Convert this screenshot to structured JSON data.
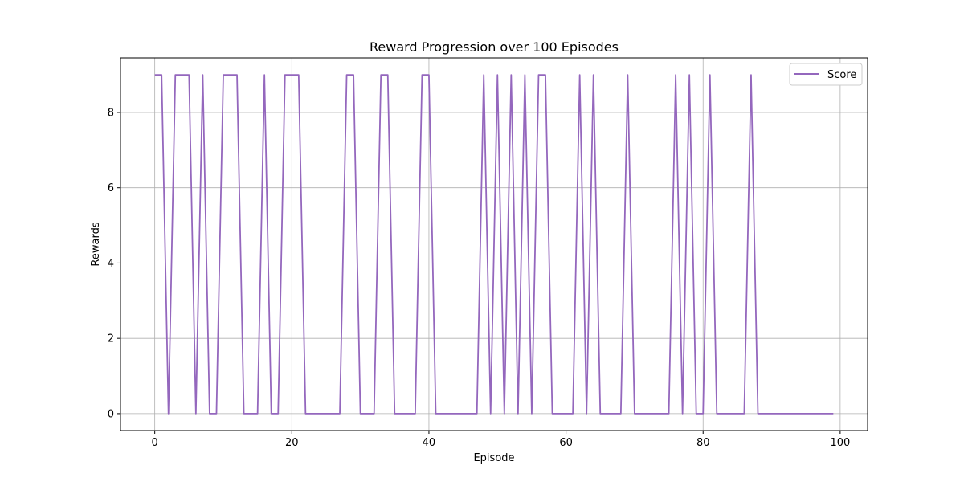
{
  "chart_data": {
    "type": "line",
    "title": "Reward Progression over 100 Episodes",
    "xlabel": "Episode",
    "ylabel": "Rewards",
    "xlim": [
      -5,
      104
    ],
    "ylim": [
      -0.45,
      9.45
    ],
    "xticks": [
      0,
      20,
      40,
      60,
      80,
      100
    ],
    "yticks": [
      0,
      2,
      4,
      6,
      8
    ],
    "grid": true,
    "legend": "top-right",
    "series": [
      {
        "name": "Score",
        "color": "#9467bd",
        "x": [
          0,
          1,
          2,
          3,
          4,
          5,
          6,
          7,
          8,
          9,
          10,
          11,
          12,
          13,
          14,
          15,
          16,
          17,
          18,
          19,
          20,
          21,
          22,
          23,
          24,
          25,
          26,
          27,
          28,
          29,
          30,
          31,
          32,
          33,
          34,
          35,
          36,
          37,
          38,
          39,
          40,
          41,
          42,
          43,
          44,
          45,
          46,
          47,
          48,
          49,
          50,
          51,
          52,
          53,
          54,
          55,
          56,
          57,
          58,
          59,
          60,
          61,
          62,
          63,
          64,
          65,
          66,
          67,
          68,
          69,
          70,
          71,
          72,
          73,
          74,
          75,
          76,
          77,
          78,
          79,
          80,
          81,
          82,
          83,
          84,
          85,
          86,
          87,
          88,
          89,
          90,
          91,
          92,
          93,
          94,
          95,
          96,
          97,
          98,
          99
        ],
        "y": [
          9,
          9,
          0,
          9,
          9,
          9,
          0,
          9,
          0,
          0,
          9,
          9,
          9,
          0,
          0,
          0,
          9,
          0,
          0,
          9,
          9,
          9,
          0,
          0,
          0,
          0,
          0,
          0,
          9,
          9,
          0,
          0,
          0,
          9,
          9,
          0,
          0,
          0,
          0,
          9,
          9,
          0,
          0,
          0,
          0,
          0,
          0,
          0,
          9,
          0,
          9,
          0,
          9,
          0,
          9,
          0,
          9,
          9,
          0,
          0,
          0,
          0,
          9,
          0,
          9,
          0,
          0,
          0,
          0,
          9,
          0,
          0,
          0,
          0,
          0,
          0,
          9,
          0,
          9,
          0,
          0,
          9,
          0,
          0,
          0,
          0,
          0,
          9,
          0,
          0,
          0,
          0,
          0,
          0,
          0,
          0,
          0,
          0,
          0,
          0
        ]
      }
    ]
  }
}
